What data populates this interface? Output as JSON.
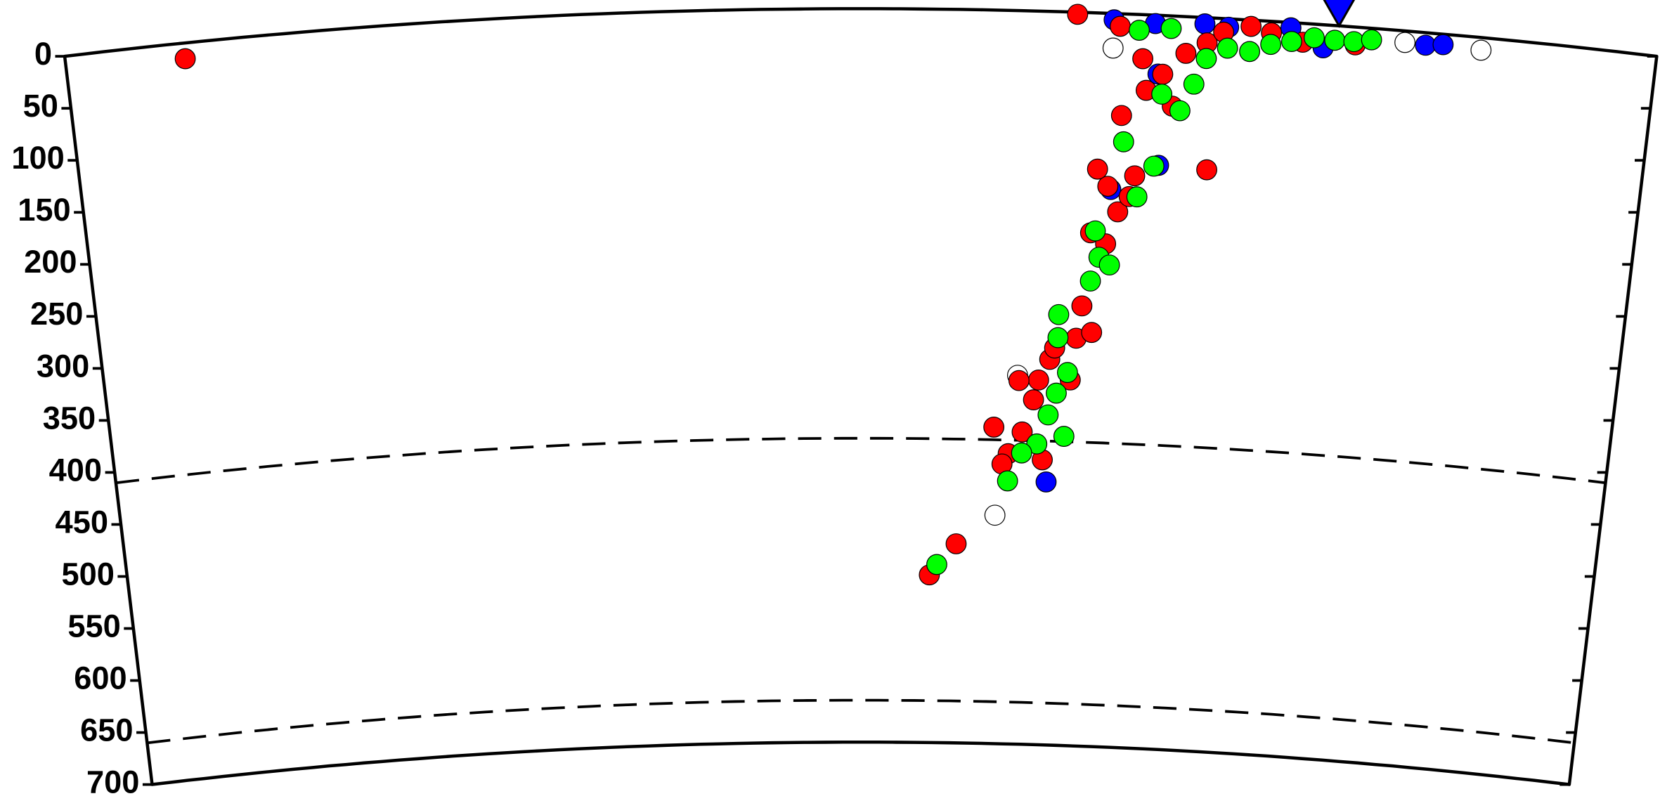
{
  "chart_data": {
    "type": "scatter",
    "xlim": [
      0,
      100
    ],
    "ylim": [
      0,
      700
    ],
    "yticks": [
      0,
      50,
      100,
      150,
      200,
      250,
      300,
      350,
      400,
      450,
      500,
      550,
      600,
      650,
      700
    ],
    "y_inverted": true,
    "discontinuities": [
      410,
      660
    ],
    "station": {
      "x": 80,
      "color": "#0000ff"
    },
    "series": [
      {
        "color": "#ffffff",
        "x": [
          65.9,
          84.2,
          89.0,
          60.4,
          59.1
        ],
        "values": [
          33,
          11,
          12,
          348,
          482
        ]
      },
      {
        "color": "#0000ff",
        "x": [
          65.9,
          68.5,
          71.6,
          73.1,
          77.0,
          79.1,
          85.5,
          86.6,
          68.8,
          69.1,
          66.1,
          62.5
        ],
        "values": [
          6,
          8,
          6,
          8,
          5,
          22,
          12,
          10,
          56,
          143,
          168,
          449
        ]
      },
      {
        "color": "#ff0000",
        "x": [
          7.5,
          63.6,
          66.3,
          68.1,
          67.8,
          69.1,
          69.8,
          70.5,
          71.8,
          72.8,
          74.5,
          75.8,
          77.8,
          81.1,
          72.2,
          65.9,
          65.2,
          66.6,
          67.3,
          67.6,
          64.9,
          65.9,
          64.5,
          64.2,
          65.2,
          62.5,
          61.8,
          61.5,
          60.5,
          60.8,
          59.9,
          58.9,
          59.5,
          62.2,
          56.5,
          54.7,
          66.6,
          63.9,
          62.8
        ],
        "values": [
          15,
          2,
          12,
          72,
          42,
          56,
          86,
          35,
          24,
          13,
          6,
          11,
          18,
          17,
          145,
          165,
          149,
          189,
          174,
          154,
          210,
          220,
          280,
          311,
          305,
          332,
          352,
          371,
          353,
          402,
          423,
          398,
          433,
          428,
          510,
          540,
          97,
          351,
          321
        ]
      },
      {
        "color": "#00ff00",
        "x": [
          67.5,
          69.5,
          71.8,
          73.1,
          74.5,
          75.8,
          77.1,
          78.5,
          79.8,
          81.0,
          82.1,
          71.1,
          69.1,
          66.8,
          68.8,
          67.8,
          65.2,
          65.5,
          66.2,
          65.0,
          63.0,
          63.0,
          63.7,
          63.0,
          62.5,
          63.6,
          61.8,
          60.8,
          59.9,
          55.2,
          70.3
        ],
        "values": [
          15,
          12,
          39,
          28,
          30,
          22,
          18,
          13,
          14,
          14,
          11,
          64,
          75,
          122,
          144,
          174,
          208,
          233,
          240,
          256,
          289,
          311,
          344,
          364,
          385,
          405,
          413,
          422,
          449,
          530,
          90
        ]
      }
    ]
  }
}
